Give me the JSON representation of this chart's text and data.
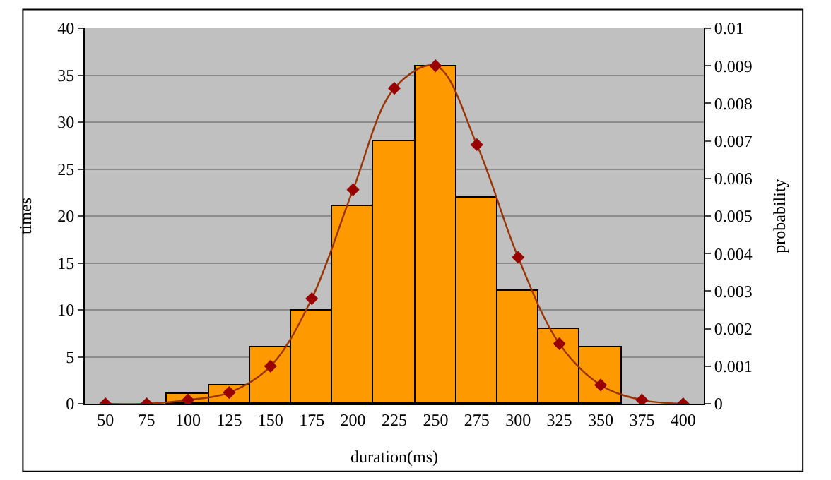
{
  "chart_data": {
    "type": "bar",
    "xlabel": "duration(ms)",
    "ylabel": "times",
    "y2label": "probability",
    "categories": [
      "50",
      "75",
      "100",
      "125",
      "150",
      "175",
      "200",
      "225",
      "250",
      "275",
      "300",
      "325",
      "350",
      "375",
      "400"
    ],
    "series": [
      {
        "color": "#ff9900",
        "values": [
          null,
          null,
          1,
          2,
          6,
          10,
          21,
          28,
          36,
          22,
          12,
          8,
          6,
          null,
          null
        ]
      },
      {
        "type": "line",
        "axis": "y2",
        "color": "#993300",
        "marker": "diamond",
        "values": [
          0,
          0,
          0.0001,
          0.0003,
          0.001,
          0.0028,
          0.0057,
          0.0084,
          0.009,
          0.0069,
          0.0039,
          0.0016,
          0.0005,
          0.0001,
          0
        ]
      }
    ],
    "ylim": [
      0,
      40
    ],
    "yticks": [
      0,
      5,
      10,
      15,
      20,
      25,
      30,
      35,
      40
    ],
    "y2lim": [
      0,
      0.01
    ],
    "y2ticks": [
      0,
      0.001,
      0.002,
      0.003,
      0.004,
      0.005,
      0.006,
      0.007,
      0.008,
      0.009,
      0.01
    ],
    "grid": "y",
    "legend": false
  }
}
